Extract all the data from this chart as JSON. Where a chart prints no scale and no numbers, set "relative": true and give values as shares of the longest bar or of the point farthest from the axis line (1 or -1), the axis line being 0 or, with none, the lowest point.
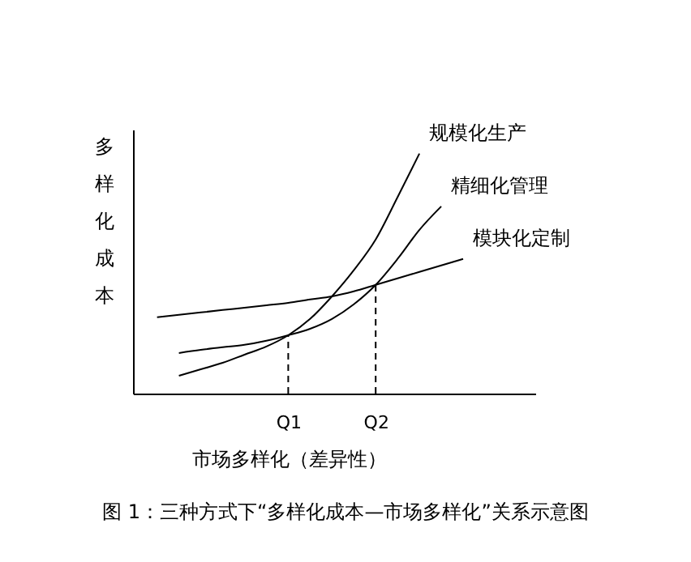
{
  "chart_data": {
    "type": "line",
    "relative": true,
    "ylabel": "多样化成本",
    "xlabel": "市场多样化（差异性）",
    "categories": [
      null,
      null,
      null,
      null,
      null,
      null,
      "Q1",
      null,
      null,
      null,
      "Q2",
      null,
      null,
      null,
      null
    ],
    "series": [
      {
        "name": "规模化生产",
        "color": "#000000",
        "values": [
          null,
          0.074,
          0.101,
          0.128,
          0.162,
          0.196,
          0.243,
          0.311,
          0.405,
          0.514,
          0.642,
          0.818,
          1,
          null,
          null
        ]
      },
      {
        "name": "精细化管理",
        "color": "#000000",
        "values": [
          null,
          0.169,
          0.182,
          0.193,
          0.203,
          0.22,
          0.243,
          0.27,
          0.311,
          0.372,
          0.453,
          0.561,
          0.682,
          0.78,
          null
        ]
      },
      {
        "name": "模块化定制",
        "color": "#000000",
        "values": [
          0.318,
          0.328,
          0.338,
          0.348,
          0.358,
          0.368,
          0.378,
          0.392,
          0.405,
          0.426,
          0.453,
          0.48,
          0.507,
          0.534,
          0.561
        ]
      }
    ],
    "ref_lines": [
      {
        "axis": "x",
        "value": "Q1",
        "line_style": "dashed"
      },
      {
        "axis": "x",
        "value": "Q2",
        "line_style": "dashed"
      }
    ],
    "annotations": [
      "图 1：三种方式下“多样化成本—市场多样化”关系示意图"
    ]
  }
}
